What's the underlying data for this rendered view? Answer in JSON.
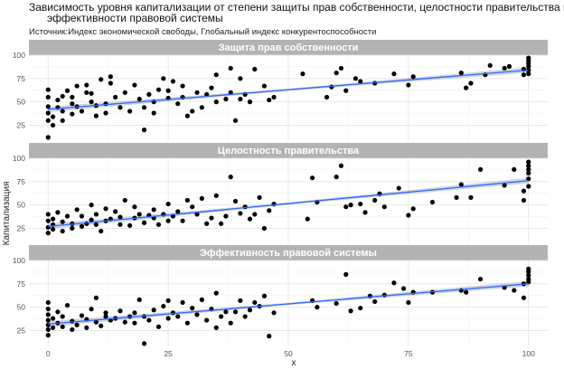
{
  "title_line1": "Зависимость уровня капитализации от степени защиты прав собственности, целостности правительства и",
  "title_line2": "эффективности правовой системы",
  "subtitle": "Источник:Индекс экономической свободы, Глобальный индекс конкурентоспособности",
  "colors": {
    "points": "#000000",
    "trend": "#3366ff",
    "ribbon": "#a9b4c6",
    "strip": "#b3b3b3",
    "panel_bg": "#ffffff"
  },
  "chart_data": {
    "type": "scatter",
    "xlabel": "x",
    "ylabel": "Капитализация",
    "xlim": [
      -4,
      104
    ],
    "ylim": [
      8,
      100
    ],
    "x_ticks": [
      0,
      25,
      50,
      75,
      100
    ],
    "y_ticks": [
      25,
      50,
      75,
      100
    ],
    "grid": true,
    "panels": [
      {
        "name": "Защита прав собственности",
        "trend": {
          "x": [
            0,
            100
          ],
          "y": [
            42,
            84
          ]
        },
        "points": [
          [
            0,
            12
          ],
          [
            0,
            30
          ],
          [
            0,
            38
          ],
          [
            0,
            45
          ],
          [
            0,
            55
          ],
          [
            0,
            63
          ],
          [
            1,
            25
          ],
          [
            1,
            34
          ],
          [
            2,
            44
          ],
          [
            2,
            52
          ],
          [
            3,
            30
          ],
          [
            3,
            40
          ],
          [
            3,
            56
          ],
          [
            4,
            62
          ],
          [
            5,
            37
          ],
          [
            5,
            48
          ],
          [
            5,
            55
          ],
          [
            6,
            45
          ],
          [
            6,
            67
          ],
          [
            7,
            40
          ],
          [
            8,
            60
          ],
          [
            8,
            68
          ],
          [
            9,
            50
          ],
          [
            9,
            59
          ],
          [
            10,
            35
          ],
          [
            10,
            46
          ],
          [
            11,
            74
          ],
          [
            12,
            38
          ],
          [
            12,
            48
          ],
          [
            13,
            70
          ],
          [
            13,
            77
          ],
          [
            14,
            55
          ],
          [
            15,
            44
          ],
          [
            16,
            60
          ],
          [
            17,
            40
          ],
          [
            18,
            68
          ],
          [
            19,
            53
          ],
          [
            20,
            20
          ],
          [
            20,
            44
          ],
          [
            21,
            58
          ],
          [
            22,
            50
          ],
          [
            22,
            38
          ],
          [
            23,
            63
          ],
          [
            24,
            75
          ],
          [
            25,
            54
          ],
          [
            25,
            62
          ],
          [
            26,
            72
          ],
          [
            27,
            48
          ],
          [
            28,
            55
          ],
          [
            28,
            67
          ],
          [
            29,
            35
          ],
          [
            30,
            40
          ],
          [
            31,
            60
          ],
          [
            32,
            44
          ],
          [
            33,
            58
          ],
          [
            34,
            65
          ],
          [
            35,
            50
          ],
          [
            35,
            79
          ],
          [
            37,
            53
          ],
          [
            38,
            60
          ],
          [
            38,
            86
          ],
          [
            39,
            30
          ],
          [
            40,
            53
          ],
          [
            40,
            75
          ],
          [
            41,
            58
          ],
          [
            42,
            50
          ],
          [
            43,
            85
          ],
          [
            45,
            67
          ],
          [
            46,
            52
          ],
          [
            47,
            55
          ],
          [
            53,
            80
          ],
          [
            58,
            55
          ],
          [
            59,
            66
          ],
          [
            60,
            81
          ],
          [
            61,
            86
          ],
          [
            62,
            62
          ],
          [
            64,
            75
          ],
          [
            65,
            72
          ],
          [
            68,
            70
          ],
          [
            72,
            80
          ],
          [
            75,
            68
          ],
          [
            76,
            77
          ],
          [
            86,
            81
          ],
          [
            87,
            65
          ],
          [
            88,
            70
          ],
          [
            91,
            79
          ],
          [
            92,
            89
          ],
          [
            95,
            86
          ],
          [
            96,
            88
          ],
          [
            99,
            79
          ],
          [
            99,
            85
          ],
          [
            100,
            80
          ],
          [
            100,
            84
          ],
          [
            100,
            88
          ],
          [
            100,
            91
          ],
          [
            100,
            94
          ],
          [
            100,
            97
          ]
        ]
      },
      {
        "name": "Целостность правительства",
        "trend": {
          "x": [
            0,
            100
          ],
          "y": [
            27,
            76
          ]
        },
        "points": [
          [
            0,
            20
          ],
          [
            0,
            26
          ],
          [
            0,
            33
          ],
          [
            0,
            40
          ],
          [
            1,
            24
          ],
          [
            1,
            29
          ],
          [
            1,
            35
          ],
          [
            2,
            42
          ],
          [
            3,
            22
          ],
          [
            3,
            32
          ],
          [
            4,
            38
          ],
          [
            5,
            25
          ],
          [
            5,
            30
          ],
          [
            6,
            45
          ],
          [
            7,
            27
          ],
          [
            7,
            38
          ],
          [
            8,
            30
          ],
          [
            9,
            50
          ],
          [
            9,
            34
          ],
          [
            10,
            29
          ],
          [
            10,
            40
          ],
          [
            11,
            22
          ],
          [
            12,
            33
          ],
          [
            12,
            46
          ],
          [
            13,
            35
          ],
          [
            14,
            43
          ],
          [
            15,
            29
          ],
          [
            15,
            37
          ],
          [
            16,
            55
          ],
          [
            17,
            28
          ],
          [
            18,
            36
          ],
          [
            18,
            48
          ],
          [
            19,
            40
          ],
          [
            20,
            31
          ],
          [
            21,
            39
          ],
          [
            22,
            36
          ],
          [
            22,
            45
          ],
          [
            23,
            29
          ],
          [
            24,
            40
          ],
          [
            25,
            33
          ],
          [
            25,
            51
          ],
          [
            26,
            38
          ],
          [
            27,
            43
          ],
          [
            28,
            33
          ],
          [
            29,
            55
          ],
          [
            30,
            48
          ],
          [
            31,
            40
          ],
          [
            32,
            57
          ],
          [
            33,
            30
          ],
          [
            34,
            36
          ],
          [
            35,
            60
          ],
          [
            36,
            30
          ],
          [
            37,
            38
          ],
          [
            38,
            80
          ],
          [
            39,
            54
          ],
          [
            40,
            41
          ],
          [
            41,
            48
          ],
          [
            42,
            35
          ],
          [
            43,
            40
          ],
          [
            44,
            58
          ],
          [
            45,
            25
          ],
          [
            46,
            44
          ],
          [
            47,
            51
          ],
          [
            54,
            35
          ],
          [
            55,
            79
          ],
          [
            56,
            53
          ],
          [
            60,
            80
          ],
          [
            61,
            92
          ],
          [
            62,
            48
          ],
          [
            63,
            50
          ],
          [
            65,
            51
          ],
          [
            66,
            42
          ],
          [
            68,
            55
          ],
          [
            69,
            62
          ],
          [
            70,
            48
          ],
          [
            73,
            68
          ],
          [
            75,
            39
          ],
          [
            76,
            46
          ],
          [
            80,
            53
          ],
          [
            85,
            58
          ],
          [
            86,
            72
          ],
          [
            88,
            58
          ],
          [
            90,
            88
          ],
          [
            95,
            71
          ],
          [
            97,
            88
          ],
          [
            99,
            55
          ],
          [
            99,
            65
          ],
          [
            100,
            70
          ],
          [
            100,
            78
          ],
          [
            100,
            84
          ],
          [
            100,
            88
          ],
          [
            100,
            92
          ],
          [
            100,
            96
          ]
        ]
      },
      {
        "name": "Эффективность правовой системы",
        "trend": {
          "x": [
            0,
            100
          ],
          "y": [
            32,
            75
          ]
        },
        "points": [
          [
            0,
            20
          ],
          [
            0,
            26
          ],
          [
            0,
            31
          ],
          [
            0,
            36
          ],
          [
            0,
            42
          ],
          [
            0,
            48
          ],
          [
            0,
            55
          ],
          [
            1,
            28
          ],
          [
            1,
            38
          ],
          [
            2,
            33
          ],
          [
            2,
            45
          ],
          [
            3,
            29
          ],
          [
            3,
            40
          ],
          [
            4,
            52
          ],
          [
            5,
            26
          ],
          [
            5,
            35
          ],
          [
            6,
            31
          ],
          [
            7,
            41
          ],
          [
            8,
            28
          ],
          [
            8,
            37
          ],
          [
            9,
            48
          ],
          [
            10,
            34
          ],
          [
            10,
            60
          ],
          [
            11,
            30
          ],
          [
            12,
            40
          ],
          [
            12,
            44
          ],
          [
            13,
            36
          ],
          [
            14,
            38
          ],
          [
            15,
            46
          ],
          [
            16,
            34
          ],
          [
            17,
            40
          ],
          [
            18,
            33
          ],
          [
            18,
            44
          ],
          [
            19,
            58
          ],
          [
            20,
            11
          ],
          [
            20,
            40
          ],
          [
            21,
            36
          ],
          [
            22,
            47
          ],
          [
            23,
            29
          ],
          [
            24,
            51
          ],
          [
            25,
            38
          ],
          [
            25,
            57
          ],
          [
            26,
            44
          ],
          [
            27,
            40
          ],
          [
            28,
            55
          ],
          [
            29,
            33
          ],
          [
            30,
            49
          ],
          [
            31,
            42
          ],
          [
            32,
            58
          ],
          [
            33,
            36
          ],
          [
            34,
            48
          ],
          [
            35,
            28
          ],
          [
            35,
            65
          ],
          [
            36,
            40
          ],
          [
            37,
            45
          ],
          [
            38,
            33
          ],
          [
            39,
            45
          ],
          [
            40,
            57
          ],
          [
            41,
            40
          ],
          [
            42,
            47
          ],
          [
            43,
            55
          ],
          [
            44,
            51
          ],
          [
            45,
            62
          ],
          [
            46,
            19
          ],
          [
            47,
            44
          ],
          [
            55,
            57
          ],
          [
            56,
            50
          ],
          [
            60,
            54
          ],
          [
            62,
            85
          ],
          [
            63,
            46
          ],
          [
            65,
            49
          ],
          [
            67,
            62
          ],
          [
            68,
            56
          ],
          [
            70,
            63
          ],
          [
            72,
            76
          ],
          [
            74,
            70
          ],
          [
            75,
            55
          ],
          [
            76,
            66
          ],
          [
            80,
            66
          ],
          [
            86,
            68
          ],
          [
            87,
            66
          ],
          [
            90,
            80
          ],
          [
            95,
            71
          ],
          [
            97,
            68
          ],
          [
            99,
            60
          ],
          [
            99,
            75
          ],
          [
            100,
            77
          ],
          [
            100,
            80
          ],
          [
            100,
            84
          ],
          [
            100,
            88
          ],
          [
            100,
            91
          ]
        ]
      }
    ]
  }
}
